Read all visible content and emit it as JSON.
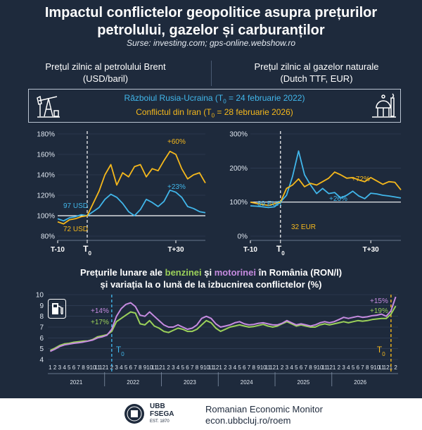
{
  "title_line1": "Impactul conflictelor geopolitice asupra prețurilor",
  "title_line2": "petrolului, gazelor și carburanților",
  "sources": "Surse: investing.com; gps-online.webshow.ro",
  "left_title_1": "Prețul zilnic al petrolului Brent",
  "left_title_2": "(USD/baril)",
  "right_title_1": "Prețul zilnic al gazelor naturale",
  "right_title_2": "(Dutch TTF, EUR)",
  "legend_russia": "Războiul Rusia-Ucraina (T",
  "legend_russia_sub": "0",
  "legend_russia_tail": " = 24 februarie 2022)",
  "legend_iran": "Conflictul din Iran (T",
  "legend_iran_sub": "0",
  "legend_iran_tail": " = 28 februarie 2026)",
  "bottom_title_1": "Prețurile lunare ale ",
  "bottom_title_benz": "benzinei",
  "bottom_title_and": " și ",
  "bottom_title_mot": "motorinei",
  "bottom_title_2": " în România (RON/l)",
  "bottom_title_3": "și variația la o lună de la izbucnirea conflictelor (%)",
  "footer_name": "Romanian Economic Monitor",
  "footer_url": "econ.ubbcluj.ro/roem",
  "logo_text_1": "UBB",
  "logo_text_2": "FSEGA",
  "logo_text_3": "EST. 1870",
  "colors": {
    "russia": "#41b6ea",
    "iran": "#f5b81c",
    "benzina": "#9bd15a",
    "motorina": "#c68be0"
  },
  "chart_data": [
    {
      "type": "line",
      "title": "Prețul zilnic al petrolului Brent (USD/baril)",
      "ylim": [
        80,
        180
      ],
      "yticks": [
        "80%",
        "100%",
        "120%",
        "140%",
        "160%",
        "180%"
      ],
      "xticks": [
        "T-10",
        "T0",
        "T+30"
      ],
      "xrange": [
        -10,
        40
      ],
      "annotations": [
        "97 USD",
        "72 USD",
        "+60%",
        "+23%"
      ],
      "series": [
        {
          "name": "Războiul Rusia-Ucraina",
          "x": [
            -10,
            -8,
            -6,
            -4,
            -2,
            0,
            2,
            4,
            6,
            8,
            10,
            12,
            14,
            16,
            18,
            20,
            22,
            24,
            26,
            28,
            30,
            32,
            34,
            36,
            38,
            40
          ],
          "y": [
            97,
            95,
            98,
            99,
            101,
            100,
            104,
            108,
            116,
            121,
            118,
            112,
            104,
            100,
            106,
            116,
            113,
            109,
            114,
            125,
            123,
            118,
            109,
            107,
            104,
            103
          ]
        },
        {
          "name": "Conflictul din Iran",
          "x": [
            -10,
            -8,
            -6,
            -4,
            -2,
            0,
            2,
            4,
            6,
            8,
            10,
            12,
            14,
            16,
            18,
            20,
            22,
            24,
            26,
            28,
            30,
            32,
            34,
            36,
            38,
            40
          ],
          "y": [
            94,
            92,
            96,
            97,
            99,
            100,
            112,
            124,
            140,
            150,
            130,
            142,
            138,
            148,
            150,
            138,
            146,
            144,
            154,
            163,
            160,
            146,
            136,
            140,
            142,
            132
          ]
        }
      ]
    },
    {
      "type": "line",
      "title": "Prețul zilnic al gazelor naturale (Dutch TTF, EUR)",
      "ylim": [
        0,
        300
      ],
      "yticks": [
        "0%",
        "100%",
        "200%",
        "300%"
      ],
      "xticks": [
        "T-10",
        "T0",
        "T+30"
      ],
      "xrange": [
        -10,
        40
      ],
      "annotations": [
        "89 EUR",
        "32 EUR",
        "+72%",
        "+26%"
      ],
      "series": [
        {
          "name": "Războiul Rusia-Ucraina",
          "x": [
            -10,
            -8,
            -6,
            -4,
            -2,
            0,
            2,
            4,
            6,
            8,
            10,
            12,
            14,
            16,
            18,
            20,
            22,
            24,
            26,
            28,
            30,
            32,
            34,
            36,
            38,
            40
          ],
          "y": [
            89,
            88,
            86,
            84,
            86,
            100,
            120,
            175,
            250,
            180,
            150,
            125,
            140,
            125,
            128,
            112,
            120,
            132,
            118,
            110,
            126,
            124,
            120,
            118,
            115,
            112
          ]
        },
        {
          "name": "Conflictul din Iran",
          "x": [
            -10,
            -8,
            -6,
            -4,
            -2,
            0,
            2,
            4,
            6,
            8,
            10,
            12,
            14,
            16,
            18,
            20,
            22,
            24,
            26,
            28,
            30,
            32,
            34,
            36,
            38,
            40
          ],
          "y": [
            100,
            96,
            93,
            90,
            95,
            100,
            140,
            150,
            168,
            145,
            155,
            150,
            160,
            170,
            188,
            180,
            170,
            172,
            165,
            160,
            172,
            162,
            152,
            160,
            158,
            136
          ]
        }
      ]
    },
    {
      "type": "line",
      "title": "Prețurile lunare ale benzinei și motorinei în România (RON/l)",
      "ylim": [
        4,
        10
      ],
      "yticks": [
        "4",
        "5",
        "6",
        "7",
        "8",
        "9",
        "10"
      ],
      "years": [
        "2021",
        "2022",
        "2023",
        "2024",
        "2025",
        "2026"
      ],
      "annotations": [
        "+14%",
        "+17%",
        "+15%",
        "+19%"
      ],
      "series": [
        {
          "name": "benzina",
          "values": [
            4.85,
            5.05,
            5.3,
            5.45,
            5.5,
            5.6,
            5.65,
            5.7,
            5.72,
            5.85,
            6.1,
            6.2,
            6.3,
            6.6,
            7.5,
            7.8,
            8.1,
            8.4,
            8.3,
            7.3,
            7.2,
            7.6,
            7.1,
            6.9,
            6.6,
            6.5,
            6.7,
            6.9,
            6.8,
            6.6,
            6.6,
            6.8,
            7.2,
            7.6,
            7.4,
            6.9,
            6.6,
            6.8,
            7.0,
            7.1,
            7.2,
            7.1,
            7.0,
            7.05,
            7.15,
            7.25,
            7.1,
            7.0,
            7.1,
            7.3,
            7.5,
            7.3,
            7.1,
            7.2,
            7.1,
            7.0,
            7.0,
            7.2,
            7.3,
            7.2,
            7.3,
            7.4,
            7.5,
            7.4,
            7.5,
            7.6,
            7.55,
            7.6,
            7.7,
            7.75,
            7.8,
            7.8,
            8.2,
            8.95
          ]
        },
        {
          "name": "motorina",
          "values": [
            4.75,
            4.95,
            5.2,
            5.35,
            5.42,
            5.5,
            5.55,
            5.62,
            5.7,
            5.8,
            6.0,
            6.1,
            6.25,
            6.8,
            8.0,
            8.7,
            9.1,
            9.25,
            8.9,
            8.1,
            8.0,
            8.4,
            8.0,
            7.6,
            7.2,
            7.0,
            7.0,
            7.2,
            7.0,
            6.8,
            6.9,
            7.2,
            7.8,
            8.0,
            7.8,
            7.3,
            7.0,
            7.1,
            7.2,
            7.4,
            7.5,
            7.3,
            7.2,
            7.25,
            7.35,
            7.4,
            7.3,
            7.2,
            7.2,
            7.35,
            7.6,
            7.4,
            7.2,
            7.3,
            7.2,
            7.1,
            7.2,
            7.4,
            7.5,
            7.4,
            7.5,
            7.7,
            7.9,
            7.8,
            7.9,
            8.0,
            7.9,
            7.95,
            8.05,
            8.1,
            8.2,
            8.0,
            8.5,
            9.8
          ]
        }
      ]
    }
  ]
}
